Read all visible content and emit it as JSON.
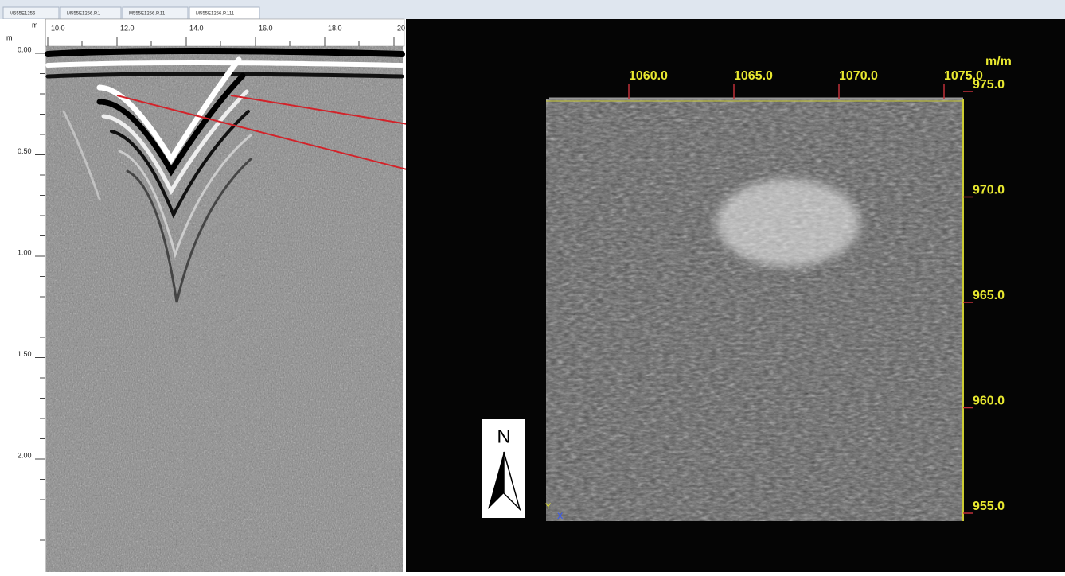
{
  "tabs": [
    "M555E1256",
    "M555E1256.P.1",
    "M555E1256.P.11",
    "M555E1256.P.111"
  ],
  "radargram": {
    "distance_unit": "m",
    "depth_unit": "m",
    "distance_ticks": [
      "10.0",
      "12.0",
      "14.0",
      "16.0",
      "18.0",
      "20"
    ],
    "depth_ticks": [
      "0.00",
      "0.50",
      "1.00",
      "1.50",
      "2.00"
    ]
  },
  "depth_slice": {
    "unit": "m/m",
    "x_ticks": [
      "1060.0",
      "1065.0",
      "1070.0",
      "1075.0"
    ],
    "y_ticks": [
      "975.0",
      "970.0",
      "965.0",
      "960.0",
      "955.0"
    ],
    "north_label": "N",
    "axis_y": "Y",
    "axis_x": "X"
  }
}
